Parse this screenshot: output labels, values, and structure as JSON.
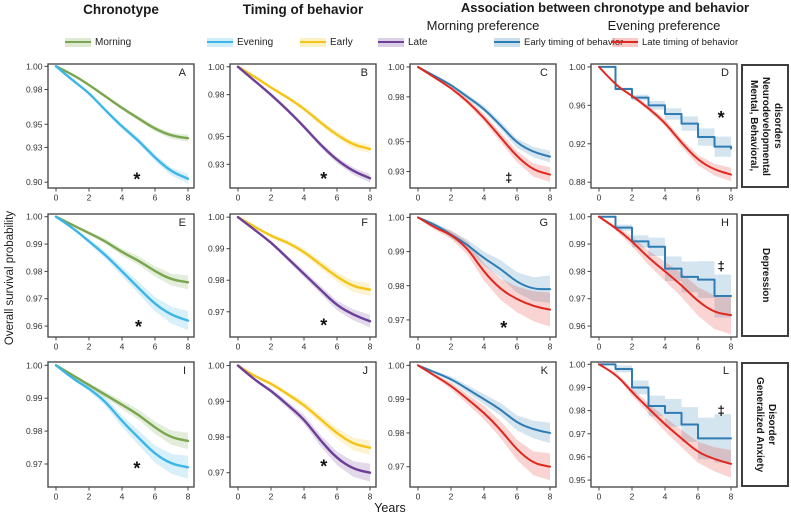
{
  "figure": {
    "col_titles": [
      "Chronotype",
      "Timing of behavior"
    ],
    "assoc_title": "Association between chronotype  and behavior",
    "assoc_subtitles": [
      "Morning preference",
      "Evening preference"
    ],
    "ylabel": "Overall survival probability",
    "xlabel": "Years",
    "row_labels": [
      "Mental, Behavioral, Neurodevelopmental disorders",
      "Depression",
      "Generalized Anxiety Disorder"
    ]
  },
  "colors": {
    "morning": "#79a64e",
    "evening": "#3cb6e8",
    "early": "#f5c417",
    "late": "#6d3f98",
    "assoc_early": "#2f7cb5",
    "assoc_late": "#e1281f",
    "panel_border": "#4d4d4d"
  },
  "legends": {
    "chronotype": [
      {
        "label": "Morning",
        "color": "#79a64e"
      },
      {
        "label": "Evening",
        "color": "#3cb6e8"
      }
    ],
    "timing": [
      {
        "label": "Early",
        "color": "#f5c417"
      },
      {
        "label": "Late",
        "color": "#6d3f98"
      }
    ],
    "association": [
      {
        "label": "Early timing of behavior",
        "color": "#2f7cb5"
      },
      {
        "label": "Late timing of behavior",
        "color": "#e1281f"
      }
    ]
  },
  "chart_data": {
    "type": "line",
    "chart_kind": "kaplan-meier-survival-curves",
    "x": [
      0,
      1,
      2,
      3,
      4,
      5,
      6,
      7,
      8
    ],
    "xticks": [
      0,
      2,
      4,
      6,
      8
    ],
    "xlabel": "Years",
    "ylabel": "Overall survival probability",
    "column_groups": [
      "Chronotype",
      "Timing of behavior",
      "Morning preference",
      "Evening preference"
    ],
    "row_groups": [
      "Mental, Behavioral, Neurodevelopmental disorders",
      "Depression",
      "Generalized Anxiety Disorder"
    ],
    "panels": [
      {
        "label": "A",
        "row": 0,
        "col": 0,
        "ylim": [
          0.895,
          1.002
        ],
        "yticks": [
          "1.00",
          "0.98",
          "0.95",
          "0.93",
          "0.90"
        ],
        "series": [
          {
            "name": "Morning",
            "color": "#79a64e",
            "band": 0.003,
            "values": [
              1.0,
              0.993,
              0.984,
              0.974,
              0.964,
              0.955,
              0.946,
              0.94,
              0.938
            ]
          },
          {
            "name": "Evening",
            "color": "#3cb6e8",
            "band": 0.004,
            "values": [
              1.0,
              0.988,
              0.977,
              0.962,
              0.948,
              0.936,
              0.921,
              0.909,
              0.903
            ]
          }
        ],
        "sig": {
          "symbol": "*",
          "x": 4.9,
          "y": 0.903
        }
      },
      {
        "label": "B",
        "row": 0,
        "col": 1,
        "ylim": [
          0.913,
          1.002
        ],
        "yticks": [
          "1.00",
          "0.98",
          "0.95",
          "0.93"
        ],
        "series": [
          {
            "name": "Early",
            "color": "#f5c417",
            "band": 0.003,
            "values": [
              1.0,
              0.993,
              0.985,
              0.978,
              0.97,
              0.96,
              0.951,
              0.944,
              0.941
            ]
          },
          {
            "name": "Late",
            "color": "#6d3f98",
            "band": 0.003,
            "values": [
              1.0,
              0.99,
              0.98,
              0.969,
              0.957,
              0.944,
              0.933,
              0.925,
              0.92
            ]
          }
        ],
        "sig": {
          "symbol": "*",
          "x": 5.2,
          "y": 0.92
        }
      },
      {
        "label": "C",
        "row": 0,
        "col": 2,
        "ylim": [
          0.919,
          1.002
        ],
        "yticks": [
          "1.00",
          "0.98",
          "0.95",
          "0.93"
        ],
        "series": [
          {
            "name": "Early timing of behavior",
            "color": "#2f7cb5",
            "band": 0.004,
            "values": [
              1.0,
              0.994,
              0.988,
              0.98,
              0.972,
              0.961,
              0.949,
              0.943,
              0.94
            ]
          },
          {
            "name": "Late timing of behavior",
            "color": "#e1281f",
            "band": 0.005,
            "values": [
              1.0,
              0.993,
              0.986,
              0.977,
              0.966,
              0.953,
              0.94,
              0.931,
              0.928
            ]
          }
        ],
        "sig": {
          "symbol": "‡",
          "x": 5.5,
          "y": 0.926
        }
      },
      {
        "label": "D",
        "row": 0,
        "col": 3,
        "ylim": [
          0.874,
          1.003
        ],
        "yticks": [
          "1.00",
          "0.96",
          "0.92",
          "0.88"
        ],
        "series": [
          {
            "name": "Early timing of behavior",
            "color": "#2f7cb5",
            "band": 0.012,
            "step": true,
            "values": [
              1.0,
              0.977,
              0.968,
              0.96,
              0.951,
              0.941,
              0.927,
              0.917,
              0.915
            ]
          },
          {
            "name": "Late timing of behavior",
            "color": "#e1281f",
            "band": 0.007,
            "values": [
              1.0,
              0.981,
              0.97,
              0.957,
              0.942,
              0.921,
              0.903,
              0.893,
              0.888
            ]
          }
        ],
        "sig": {
          "symbol": "*",
          "x": 7.4,
          "y": 0.948
        }
      },
      {
        "label": "E",
        "row": 1,
        "col": 0,
        "ylim": [
          0.956,
          1.001
        ],
        "yticks": [
          "1.00",
          "0.99",
          "0.98",
          "0.97",
          "0.96"
        ],
        "series": [
          {
            "name": "Morning",
            "color": "#79a64e",
            "band": 0.0025,
            "values": [
              1.0,
              0.997,
              0.994,
              0.991,
              0.987,
              0.984,
              0.98,
              0.977,
              0.976
            ]
          },
          {
            "name": "Evening",
            "color": "#3cb6e8",
            "band": 0.0035,
            "values": [
              1.0,
              0.996,
              0.991,
              0.986,
              0.98,
              0.974,
              0.968,
              0.964,
              0.962
            ]
          }
        ],
        "sig": {
          "symbol": "*",
          "x": 5.0,
          "y": 0.96
        }
      },
      {
        "label": "F",
        "row": 1,
        "col": 1,
        "ylim": [
          0.962,
          1.001
        ],
        "yticks": [
          "1.00",
          "0.99",
          "0.98",
          "0.97"
        ],
        "series": [
          {
            "name": "Early",
            "color": "#f5c417",
            "band": 0.002,
            "values": [
              1.0,
              0.997,
              0.994,
              0.992,
              0.989,
              0.985,
              0.981,
              0.978,
              0.977
            ]
          },
          {
            "name": "Late",
            "color": "#6d3f98",
            "band": 0.002,
            "values": [
              1.0,
              0.996,
              0.992,
              0.987,
              0.982,
              0.977,
              0.972,
              0.969,
              0.967
            ]
          }
        ],
        "sig": {
          "symbol": "*",
          "x": 5.2,
          "y": 0.966
        }
      },
      {
        "label": "G",
        "row": 1,
        "col": 2,
        "ylim": [
          0.965,
          1.001
        ],
        "yticks": [
          "1.00",
          "0.99",
          "0.98",
          "0.97"
        ],
        "series": [
          {
            "name": "Early timing of behavior",
            "color": "#2f7cb5",
            "band": 0.004,
            "values": [
              1.0,
              0.998,
              0.995,
              0.992,
              0.988,
              0.985,
              0.981,
              0.979,
              0.979
            ]
          },
          {
            "name": "Late timing of behavior",
            "color": "#e1281f",
            "band": 0.005,
            "values": [
              1.0,
              0.997,
              0.995,
              0.991,
              0.984,
              0.979,
              0.976,
              0.974,
              0.973
            ]
          }
        ],
        "sig": {
          "symbol": "*",
          "x": 5.2,
          "y": 0.968
        }
      },
      {
        "label": "H",
        "row": 1,
        "col": 3,
        "ylim": [
          0.956,
          1.001
        ],
        "yticks": [
          "1.00",
          "0.99",
          "0.98",
          "0.97",
          "0.96"
        ],
        "series": [
          {
            "name": "Early timing of behavior",
            "color": "#2f7cb5",
            "band": 0.009,
            "step": true,
            "values": [
              1.0,
              0.996,
              0.991,
              0.989,
              0.981,
              0.978,
              0.977,
              0.971,
              0.971
            ]
          },
          {
            "name": "Late timing of behavior",
            "color": "#e1281f",
            "band": 0.007,
            "values": [
              1.0,
              0.996,
              0.991,
              0.985,
              0.98,
              0.975,
              0.969,
              0.965,
              0.964
            ]
          }
        ],
        "sig": {
          "symbol": "‡",
          "x": 7.4,
          "y": 0.982
        }
      },
      {
        "label": "I",
        "row": 2,
        "col": 0,
        "ylim": [
          0.963,
          1.001
        ],
        "yticks": [
          "1.00",
          "0.99",
          "0.98",
          "0.97"
        ],
        "series": [
          {
            "name": "Morning",
            "color": "#79a64e",
            "band": 0.0025,
            "values": [
              1.0,
              0.997,
              0.994,
              0.991,
              0.988,
              0.985,
              0.981,
              0.978,
              0.977
            ]
          },
          {
            "name": "Evening",
            "color": "#3cb6e8",
            "band": 0.0035,
            "values": [
              1.0,
              0.996,
              0.993,
              0.989,
              0.983,
              0.978,
              0.973,
              0.97,
              0.969
            ]
          }
        ],
        "sig": {
          "symbol": "*",
          "x": 4.9,
          "y": 0.969
        }
      },
      {
        "label": "J",
        "row": 2,
        "col": 1,
        "ylim": [
          0.966,
          1.001
        ],
        "yticks": [
          "1.00",
          "0.99",
          "0.98",
          "0.97"
        ],
        "series": [
          {
            "name": "Early",
            "color": "#f5c417",
            "band": 0.002,
            "values": [
              1.0,
              0.997,
              0.995,
              0.992,
              0.989,
              0.985,
              0.981,
              0.978,
              0.977
            ]
          },
          {
            "name": "Late",
            "color": "#6d3f98",
            "band": 0.0025,
            "values": [
              1.0,
              0.996,
              0.993,
              0.989,
              0.985,
              0.979,
              0.974,
              0.971,
              0.97
            ]
          }
        ],
        "sig": {
          "symbol": "*",
          "x": 5.2,
          "y": 0.972
        }
      },
      {
        "label": "K",
        "row": 2,
        "col": 2,
        "ylim": [
          0.964,
          1.001
        ],
        "yticks": [
          "1.00",
          "0.99",
          "0.98",
          "0.97"
        ],
        "series": [
          {
            "name": "Early timing of behavior",
            "color": "#2f7cb5",
            "band": 0.003,
            "values": [
              1.0,
              0.998,
              0.996,
              0.993,
              0.99,
              0.987,
              0.983,
              0.981,
              0.98
            ]
          },
          {
            "name": "Late timing of behavior",
            "color": "#e1281f",
            "band": 0.004,
            "values": [
              1.0,
              0.997,
              0.994,
              0.99,
              0.986,
              0.981,
              0.975,
              0.971,
              0.97
            ]
          }
        ],
        "sig": null
      },
      {
        "label": "L",
        "row": 2,
        "col": 3,
        "ylim": [
          0.947,
          1.001
        ],
        "yticks": [
          "1.00",
          "0.99",
          "0.98",
          "0.97",
          "0.96",
          "0.95"
        ],
        "series": [
          {
            "name": "Early timing of behavior",
            "color": "#2f7cb5",
            "band": 0.012,
            "step": true,
            "values": [
              1.0,
              0.998,
              0.99,
              0.982,
              0.979,
              0.974,
              0.968,
              0.968,
              0.968
            ]
          },
          {
            "name": "Late timing of behavior",
            "color": "#e1281f",
            "band": 0.006,
            "values": [
              1.0,
              0.996,
              0.988,
              0.981,
              0.974,
              0.968,
              0.962,
              0.959,
              0.957
            ]
          }
        ],
        "sig": {
          "symbol": "‡",
          "x": 7.4,
          "y": 0.98
        }
      }
    ]
  }
}
